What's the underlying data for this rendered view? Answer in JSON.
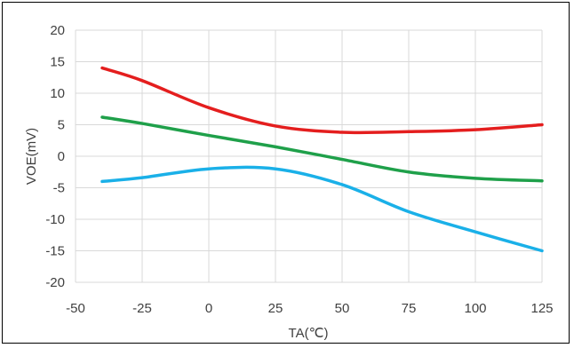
{
  "chart_data": {
    "type": "line",
    "title": "",
    "xlabel": "TA(℃)",
    "ylabel": "VOE(mV)",
    "xlim": [
      -50,
      125
    ],
    "ylim": [
      -20,
      20
    ],
    "x_ticks": [
      "-50",
      "-25",
      "0",
      "25",
      "50",
      "75",
      "100",
      "125"
    ],
    "y_ticks": [
      "20",
      "15",
      "10",
      "5",
      "0",
      "-5",
      "-10",
      "-15",
      "-20"
    ],
    "grid": true,
    "legend": "none",
    "series": [
      {
        "color": "#e41e1e",
        "x": [
          -40,
          -25,
          0,
          25,
          50,
          75,
          100,
          125
        ],
        "y": [
          14.0,
          12.0,
          7.7,
          4.8,
          3.8,
          3.9,
          4.2,
          5.0
        ]
      },
      {
        "color": "#1fa04a",
        "x": [
          -40,
          -25,
          0,
          25,
          50,
          75,
          100,
          125
        ],
        "y": [
          6.2,
          5.2,
          3.3,
          1.5,
          -0.5,
          -2.5,
          -3.5,
          -3.9
        ]
      },
      {
        "color": "#1ab0e8",
        "x": [
          -40,
          -25,
          0,
          25,
          50,
          75,
          100,
          125
        ],
        "y": [
          -4.0,
          -3.4,
          -2.0,
          -2.0,
          -4.5,
          -8.8,
          -12.0,
          -15.0
        ]
      }
    ]
  }
}
